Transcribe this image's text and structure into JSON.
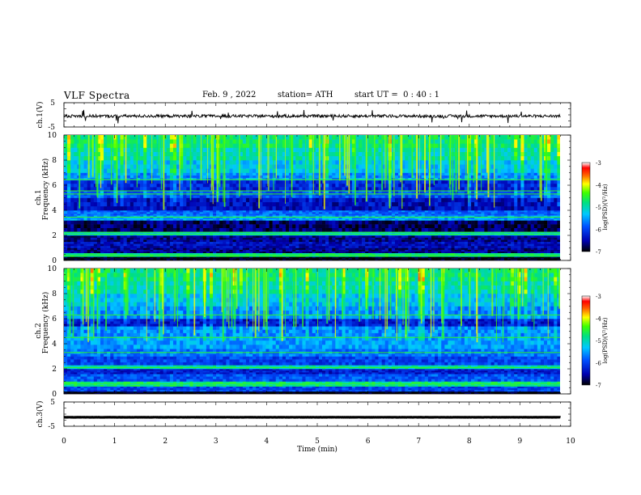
{
  "header": {
    "title": "VLF Spectra",
    "date": "Feb. 9 , 2022",
    "station": "station= ATH",
    "start_ut": "start UT =  0 : 40 : 1"
  },
  "chart_data": [
    {
      "type": "line",
      "panel": "ch1-waveform",
      "ylabel": "ch.1(V)",
      "ylim": [
        -5,
        5
      ],
      "yticks": [
        "5",
        "-5"
      ],
      "xlim": [
        0,
        10
      ],
      "trace_color": "#000000",
      "description_values": {
        "baseline_v": -0.5,
        "noise_amplitude_v": 0.6,
        "spike_max_v": 3
      }
    },
    {
      "type": "heatmap",
      "panel": "ch1-spectrogram",
      "ylabel": "ch.1",
      "ylabel2": "Frequency  (kHz)",
      "ylim": [
        0,
        10
      ],
      "yticks": [
        "0",
        "2",
        "4",
        "6",
        "8",
        "10"
      ],
      "xlim": [
        0,
        9.8
      ],
      "colorbar": {
        "label": "log(PSD)(V²/Hz)",
        "range": [
          -7,
          -3
        ],
        "ticks": [
          "-3",
          "-4",
          "-5",
          "-6",
          "-7"
        ]
      },
      "bands_khz": [
        {
          "from": 0.0,
          "to": 0.3,
          "level": -7.0
        },
        {
          "from": 0.3,
          "to": 0.6,
          "level": -4.8
        },
        {
          "from": 0.6,
          "to": 1.0,
          "level": -6.6
        },
        {
          "from": 1.0,
          "to": 1.5,
          "level": -6.4
        },
        {
          "from": 1.5,
          "to": 2.0,
          "level": -6.6
        },
        {
          "from": 2.0,
          "to": 2.3,
          "level": -5.2
        },
        {
          "from": 2.3,
          "to": 3.2,
          "level": -6.7
        },
        {
          "from": 3.2,
          "to": 3.6,
          "level": -5.5
        },
        {
          "from": 3.6,
          "to": 4.0,
          "level": -5.8
        },
        {
          "from": 4.0,
          "to": 5.0,
          "level": -6.4
        },
        {
          "from": 5.0,
          "to": 5.6,
          "level": -5.9
        },
        {
          "from": 5.6,
          "to": 6.4,
          "level": -6.2
        },
        {
          "from": 6.4,
          "to": 7.0,
          "level": -5.6
        },
        {
          "from": 7.0,
          "to": 8.0,
          "level": -5.3
        },
        {
          "from": 8.0,
          "to": 9.0,
          "level": -5.0
        },
        {
          "from": 9.0,
          "to": 10.0,
          "level": -4.8
        }
      ],
      "narrow_lines_khz": [
        0.4,
        2.1,
        2.25,
        3.45,
        5.3,
        5.55,
        6.45
      ],
      "line_level": -4.5
    },
    {
      "type": "heatmap",
      "panel": "ch2-spectrogram",
      "ylabel": "ch.2",
      "ylabel2": "Frequency  (kHz)",
      "ylim": [
        0,
        10
      ],
      "yticks": [
        "0",
        "2",
        "4",
        "6",
        "8",
        "10"
      ],
      "xlim": [
        0,
        9.8
      ],
      "colorbar": {
        "label": "log(PSD)(V²/Hz)",
        "range": [
          -7,
          -3
        ],
        "ticks": [
          "-3",
          "-4",
          "-5",
          "-6",
          "-7"
        ]
      },
      "bands_khz": [
        {
          "from": 0.0,
          "to": 0.2,
          "level": -7.0
        },
        {
          "from": 0.2,
          "to": 0.6,
          "level": -6.0
        },
        {
          "from": 0.6,
          "to": 1.0,
          "level": -4.8
        },
        {
          "from": 1.0,
          "to": 1.6,
          "level": -5.9
        },
        {
          "from": 1.6,
          "to": 2.0,
          "level": -6.3
        },
        {
          "from": 2.0,
          "to": 2.3,
          "level": -5.0
        },
        {
          "from": 2.3,
          "to": 3.0,
          "level": -6.0
        },
        {
          "from": 3.0,
          "to": 3.6,
          "level": -5.7
        },
        {
          "from": 3.6,
          "to": 4.6,
          "level": -5.5
        },
        {
          "from": 4.6,
          "to": 5.4,
          "level": -5.6
        },
        {
          "from": 5.4,
          "to": 6.0,
          "level": -6.3
        },
        {
          "from": 6.0,
          "to": 7.0,
          "level": -5.6
        },
        {
          "from": 7.0,
          "to": 8.0,
          "level": -5.3
        },
        {
          "from": 8.0,
          "to": 9.0,
          "level": -5.0
        },
        {
          "from": 9.0,
          "to": 10.0,
          "level": -4.8
        }
      ],
      "narrow_lines_khz": [
        0.8,
        2.1,
        3.3,
        4.5,
        6.3
      ],
      "line_level": -4.5
    },
    {
      "type": "line",
      "panel": "ch3-waveform",
      "ylabel": "ch.3(V)",
      "ylim": [
        -5,
        5
      ],
      "yticks": [
        "5",
        "-5"
      ],
      "xlim": [
        0,
        10
      ],
      "trace_color": "#000000",
      "description_values": {
        "baseline_v": -1.3,
        "noise_amplitude_v": 0.05
      }
    }
  ],
  "xaxis": {
    "label": "Time  (min)",
    "ticks": [
      "0",
      "1",
      "2",
      "3",
      "4",
      "5",
      "6",
      "7",
      "8",
      "9",
      "10"
    ],
    "xlim": [
      0,
      10
    ]
  }
}
